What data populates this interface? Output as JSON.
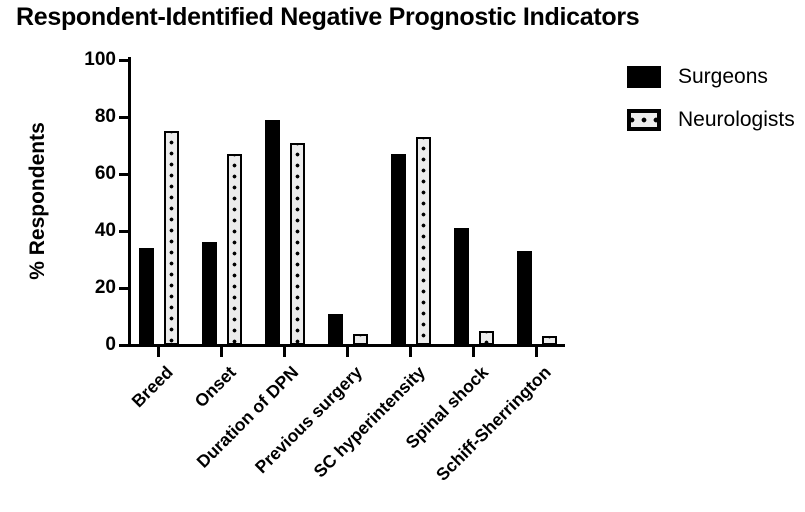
{
  "title": "Respondent-Identified Negative Prognostic Indicators",
  "colors": {
    "foreground": "#000000",
    "background": "#ffffff",
    "pattern_fill": "#ececec"
  },
  "legend": {
    "items": [
      {
        "label": "Surgeons",
        "swatch": "solid-black"
      },
      {
        "label": "Neurologists",
        "swatch": "dotted-pattern"
      }
    ],
    "position": "top-right"
  },
  "chart_data": {
    "type": "bar",
    "title": "Respondent-Identified Negative Prognostic Indicators",
    "xlabel": "",
    "ylabel": "% Respondents",
    "ylim": [
      0,
      100
    ],
    "yticks": [
      0,
      20,
      40,
      60,
      80,
      100
    ],
    "grid": false,
    "legend_position": "top-right",
    "categories": [
      "Breed",
      "Onset",
      "Duration of DPN",
      "Previous surgery",
      "SC hyperintensity",
      "Spinal shock",
      "Schiff-Sherrington"
    ],
    "series": [
      {
        "name": "Surgeons",
        "style": "solid-black",
        "values": [
          34,
          36,
          79,
          11,
          67,
          41,
          33
        ]
      },
      {
        "name": "Neurologists",
        "style": "dotted-pattern",
        "values": [
          75,
          67,
          71,
          4,
          73,
          5,
          3
        ]
      }
    ]
  }
}
